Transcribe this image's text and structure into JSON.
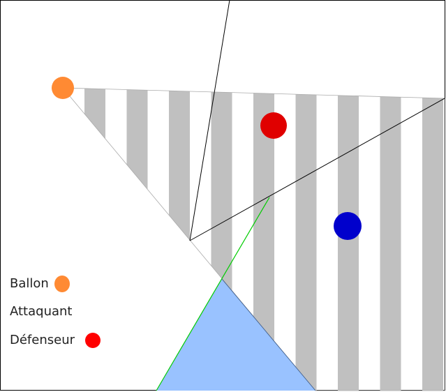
{
  "legend": {
    "items": [
      {
        "label": "Ballon",
        "color": "#ff8a33"
      },
      {
        "label": "Attaquant",
        "color": ""
      },
      {
        "label": "Défenseur",
        "color": "#ff0000"
      }
    ]
  },
  "players": {
    "ball_color": "#ff8a33",
    "defender_color": "#e00000",
    "attacker_color": "#0000cc"
  },
  "colors": {
    "stripe": "#c0c0c0",
    "zone": "#99c2ff",
    "green_line": "#00cc00",
    "frame": "#000000"
  }
}
